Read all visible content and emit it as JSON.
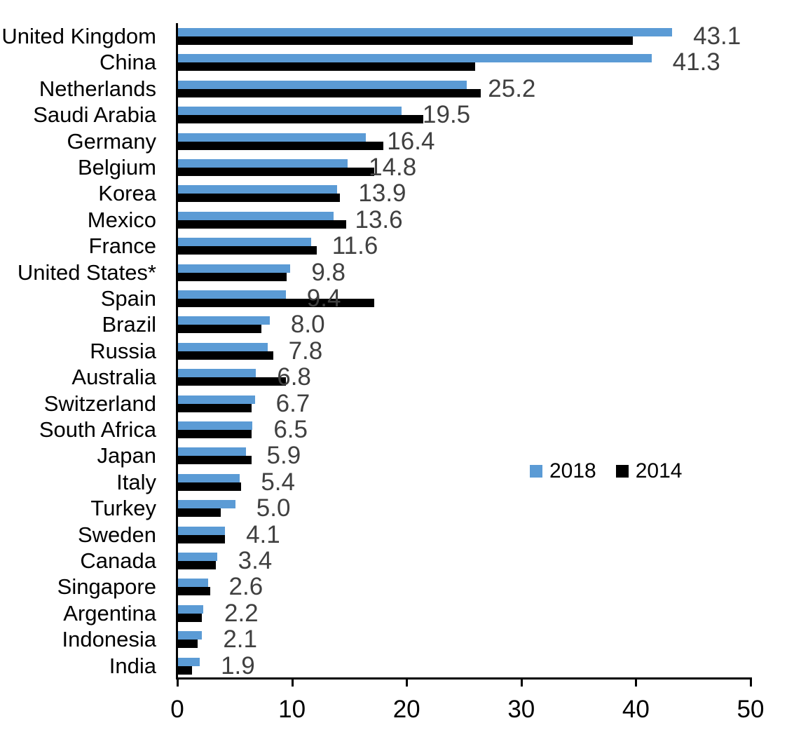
{
  "chart_data": {
    "type": "bar",
    "orientation": "horizontal",
    "title": "",
    "xlabel": "",
    "ylabel": "",
    "xlim": [
      0,
      50
    ],
    "x_ticks": [
      0,
      10,
      20,
      30,
      40,
      50
    ],
    "x_tick_labels": [
      "0",
      "10",
      "20",
      "30",
      "40",
      "50"
    ],
    "grid": false,
    "legend_position": "middle-right",
    "categories": [
      "United Kingdom",
      "China",
      "Netherlands",
      "Saudi Arabia",
      "Germany",
      "Belgium",
      "Korea",
      "Mexico",
      "France",
      "United States*",
      "Spain",
      "Brazil",
      "Russia",
      "Australia",
      "Switzerland",
      "South Africa",
      "Japan",
      "Italy",
      "Turkey",
      "Sweden",
      "Canada",
      "Singapore",
      "Argentina",
      "Indonesia",
      "India"
    ],
    "series": [
      {
        "name": "2018",
        "color": "#5B9BD5",
        "values": [
          43.1,
          41.3,
          25.2,
          19.5,
          16.4,
          14.8,
          13.9,
          13.6,
          11.6,
          9.8,
          9.4,
          8.0,
          7.8,
          6.8,
          6.7,
          6.5,
          5.9,
          5.4,
          5.0,
          4.1,
          3.4,
          2.6,
          2.2,
          2.1,
          1.9
        ]
      },
      {
        "name": "2014",
        "color": "#000000",
        "values": [
          39.7,
          25.9,
          26.4,
          21.4,
          17.9,
          17.1,
          14.1,
          14.7,
          12.1,
          9.5,
          17.1,
          7.3,
          8.3,
          9.4,
          6.4,
          6.4,
          6.4,
          5.5,
          3.7,
          4.1,
          3.3,
          2.8,
          2.1,
          1.7,
          1.2
        ]
      }
    ],
    "data_labels": [
      "43.1",
      "41.3",
      "25.2",
      "19.5",
      "16.4",
      "14.8",
      "13.9",
      "13.6",
      "11.6",
      "9.8",
      "9.4",
      "8.0",
      "7.8",
      "6.8",
      "6.7",
      "6.5",
      "5.9",
      "5.4",
      "5.0",
      "4.1",
      "3.4",
      "2.6",
      "2.2",
      "2.1",
      "1.9"
    ],
    "data_labels_series": "2018",
    "data_label_color": "#404040",
    "axis_color": "#000000",
    "legend_entries": [
      "2018",
      "2014"
    ]
  }
}
